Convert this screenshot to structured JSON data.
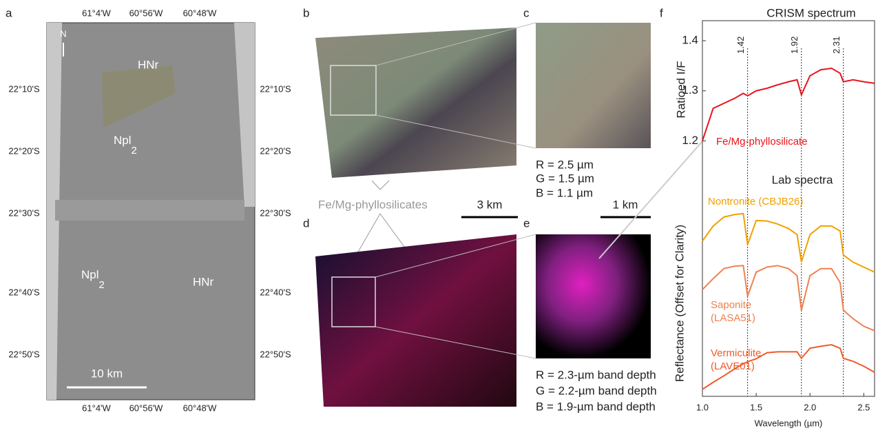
{
  "panel_labels": [
    "a",
    "b",
    "c",
    "d",
    "e",
    "f"
  ],
  "panel_a": {
    "lon_labels": [
      "61°4'W",
      "60°56'W",
      "60°48'W"
    ],
    "lat_labels": [
      "22°10'S",
      "22°20'S",
      "22°30'S",
      "22°40'S",
      "22°50'S"
    ],
    "north": "N",
    "unit_hnr": "HNr",
    "unit_npl": "Npl",
    "unit_sub": "2",
    "scale_bar": "10 km"
  },
  "panel_bc": {
    "composite": [
      "R = 2.5 µm",
      "G = 1.5 µm",
      "B = 1.1 µm"
    ],
    "feature": "Fe/Mg-phyllosilicates",
    "scale_b": "3 km",
    "scale_c": "1 km"
  },
  "panel_de": {
    "composite": [
      "R = 2.3-µm band depth",
      "G = 2.2-µm band depth",
      "B = 1.9-µm band depth"
    ]
  },
  "chart_data": {
    "type": "line",
    "title": "CRISM spectrum",
    "subtitle": "Lab spectra",
    "x_label": "Wavelength (µm)",
    "y_label": "Ratioed I/F",
    "y2_label": "Reflectance (Offset for Clarity)",
    "x": [
      1.0,
      1.1,
      1.2,
      1.3,
      1.38,
      1.42,
      1.5,
      1.6,
      1.7,
      1.8,
      1.88,
      1.92,
      2.0,
      2.1,
      2.2,
      2.28,
      2.31,
      2.4,
      2.5,
      2.6
    ],
    "xlim": [
      1.0,
      2.6
    ],
    "ylim": [
      0.69,
      1.44
    ],
    "xticks": [
      {
        "value": 1,
        "label": "1.0"
      },
      1.5,
      {
        "value": 2,
        "label": "2.0"
      },
      2.5
    ],
    "yticks": [
      1.2,
      1.3,
      1.4
    ],
    "vlines": [
      1.42,
      1.92,
      2.31
    ],
    "series": [
      {
        "name": "Fe/Mg-phyllosilicate",
        "color": "#e8141c",
        "values": [
          1.2,
          1.265,
          1.275,
          1.285,
          1.295,
          1.29,
          1.3,
          1.305,
          1.312,
          1.318,
          1.322,
          1.292,
          1.33,
          1.342,
          1.345,
          1.335,
          1.318,
          1.322,
          1.318,
          1.315
        ]
      },
      {
        "name": "Nontronite (CBJB26)",
        "color": "#f0a000",
        "values": [
          1.0,
          1.03,
          1.048,
          1.053,
          1.055,
          0.993,
          1.041,
          1.04,
          1.034,
          1.025,
          1.013,
          0.958,
          1.013,
          1.03,
          1.03,
          1.02,
          0.972,
          0.958,
          0.948,
          0.938
        ]
      },
      {
        "name": "Saponite (LASA51)",
        "color": "#f08050",
        "values": [
          0.903,
          0.925,
          0.945,
          0.95,
          0.951,
          0.89,
          0.938,
          0.948,
          0.951,
          0.945,
          0.931,
          0.862,
          0.931,
          0.945,
          0.945,
          0.917,
          0.862,
          0.845,
          0.83,
          0.821
        ]
      },
      {
        "name": "Vermiculite (LAVE01)",
        "color": "#f05a28",
        "values": [
          0.704,
          0.718,
          0.731,
          0.745,
          0.755,
          0.759,
          0.765,
          0.777,
          0.779,
          0.779,
          0.779,
          0.766,
          0.786,
          0.79,
          0.793,
          0.786,
          0.766,
          0.76,
          0.75,
          0.738
        ]
      }
    ]
  }
}
